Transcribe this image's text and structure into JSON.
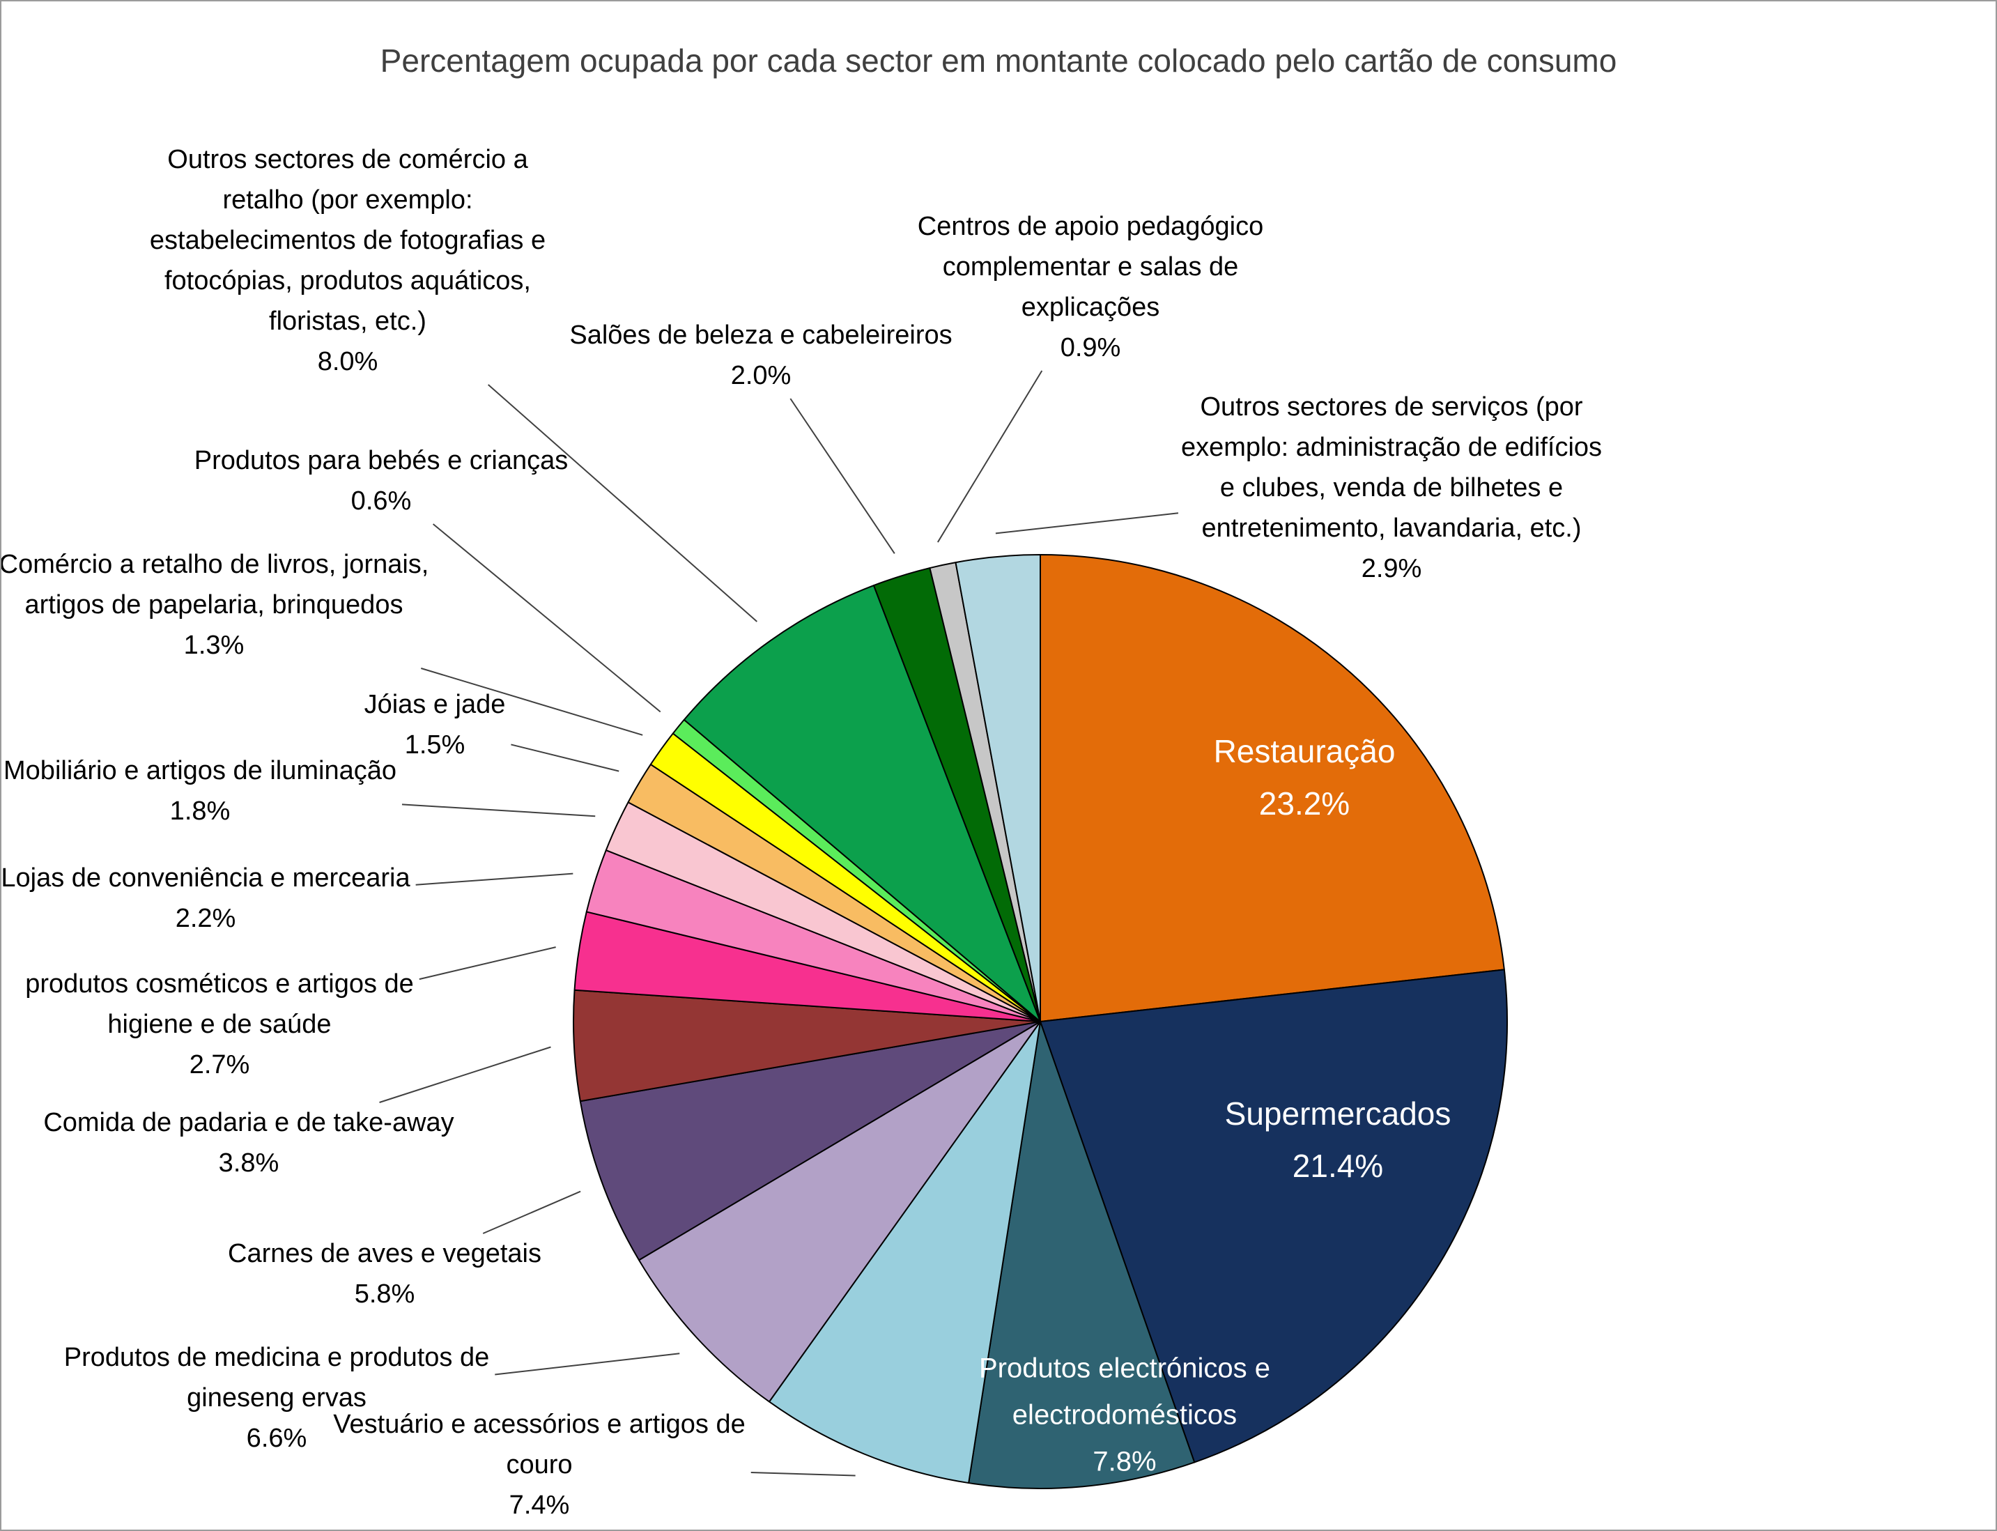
{
  "title": "Percentagem ocupada por cada sector em montante colocado pelo cartão de consumo",
  "chart_data": {
    "type": "pie",
    "title": "Percentagem ocupada por cada sector em montante colocado pelo cartão de consumo",
    "unit": "%",
    "legend_position": "none",
    "direction": "clockwise",
    "start_angle_deg": 0,
    "slices": [
      {
        "id": "restauracao",
        "label": "Restauração",
        "label_lines": [
          "Restauração"
        ],
        "value": 23.2,
        "percent_text": "23.2%",
        "color": "#E36C09",
        "label_placement": "inside"
      },
      {
        "id": "supermercados",
        "label": "Supermercados",
        "label_lines": [
          "Supermercados"
        ],
        "value": 21.4,
        "percent_text": "21.4%",
        "color": "#16315E",
        "label_placement": "inside"
      },
      {
        "id": "electronicos",
        "label": "Produtos electrónicos e electrodomésticos",
        "label_lines": [
          "Produtos electrónicos e",
          "electrodomésticos"
        ],
        "value": 7.8,
        "percent_text": "7.8%",
        "color": "#2F6372",
        "label_placement": "inside"
      },
      {
        "id": "vestuario",
        "label": "Vestuário e acessórios e artigos de couro",
        "label_lines": [
          "Vestuário e acessórios e artigos de",
          "couro"
        ],
        "value": 7.4,
        "percent_text": "7.4%",
        "color": "#99CFDD",
        "label_placement": "outside"
      },
      {
        "id": "medicina",
        "label": "Produtos de medicina e produtos de gineseng ervas",
        "label_lines": [
          "Produtos de medicina e produtos de",
          "gineseng ervas"
        ],
        "value": 6.6,
        "percent_text": "6.6%",
        "color": "#B2A1C7",
        "label_placement": "outside"
      },
      {
        "id": "carnes",
        "label": "Carnes de aves e vegetais",
        "label_lines": [
          "Carnes de aves e vegetais"
        ],
        "value": 5.8,
        "percent_text": "5.8%",
        "color": "#5F4A7B",
        "label_placement": "outside"
      },
      {
        "id": "padaria",
        "label": "Comida de padaria e de take-away",
        "label_lines": [
          "Comida de padaria e de take-away"
        ],
        "value": 3.8,
        "percent_text": "3.8%",
        "color": "#943634",
        "label_placement": "outside"
      },
      {
        "id": "cosmeticos",
        "label": "produtos cosméticos e artigos de higiene e de saúde",
        "label_lines": [
          "produtos cosméticos e artigos de",
          "higiene e de saúde"
        ],
        "value": 2.7,
        "percent_text": "2.7%",
        "color": "#F7308F",
        "label_placement": "outside"
      },
      {
        "id": "lojas",
        "label": "Lojas de conveniência e mercearia",
        "label_lines": [
          "Lojas de conveniência e mercearia"
        ],
        "value": 2.2,
        "percent_text": "2.2%",
        "color": "#F783BE",
        "label_placement": "outside"
      },
      {
        "id": "mobiliario",
        "label": "Mobiliário e artigos de iluminação",
        "label_lines": [
          "Mobiliário e artigos de iluminação"
        ],
        "value": 1.8,
        "percent_text": "1.8%",
        "color": "#F9C6D1",
        "label_placement": "outside"
      },
      {
        "id": "joias",
        "label": "Jóias e jade",
        "label_lines": [
          "Jóias e jade"
        ],
        "value": 1.5,
        "percent_text": "1.5%",
        "color": "#F8BC62",
        "label_placement": "outside"
      },
      {
        "id": "livros",
        "label": "Comércio a retalho de livros, jornais, artigos de papelaria, brinquedos",
        "label_lines": [
          "Comércio a retalho de livros, jornais,",
          "artigos de papelaria, brinquedos"
        ],
        "value": 1.3,
        "percent_text": "1.3%",
        "color": "#FFFF00",
        "label_placement": "outside"
      },
      {
        "id": "bebes",
        "label": "Produtos para bebés e crianças",
        "label_lines": [
          "Produtos para bebés e crianças"
        ],
        "value": 0.6,
        "percent_text": "0.6%",
        "color": "#5BEC5B",
        "label_placement": "outside"
      },
      {
        "id": "outros-comercio",
        "label": "Outros sectores de comércio a retalho (por exemplo: estabelecimentos de fotografias e fotocópias, produtos aquáticos, floristas, etc.)",
        "label_lines": [
          "Outros sectores de comércio a",
          "retalho (por exemplo:",
          "estabelecimentos de fotografias e",
          "fotocópias, produtos aquáticos,",
          "floristas, etc.)"
        ],
        "value": 8.0,
        "percent_text": "8.0%",
        "color": "#0CA04C",
        "label_placement": "outside"
      },
      {
        "id": "saloes",
        "label": "Salões de beleza e cabeleireiros",
        "label_lines": [
          "Salões de beleza e cabeleireiros"
        ],
        "value": 2.0,
        "percent_text": "2.0%",
        "color": "#026B06",
        "label_placement": "outside"
      },
      {
        "id": "centros",
        "label": "Centros de apoio pedagógico complementar e salas de explicações",
        "label_lines": [
          "Centros de apoio pedagógico",
          "complementar e salas de",
          "explicações"
        ],
        "value": 0.9,
        "percent_text": "0.9%",
        "color": "#C7C7C7",
        "label_placement": "outside"
      },
      {
        "id": "outros-servicos",
        "label": "Outros sectores de serviços (por exemplo: administração de edifícios e clubes, venda de bilhetes e entretenimento, lavandaria, etc.)",
        "label_lines": [
          "Outros sectores de serviços (por",
          "exemplo: administração de edifícios",
          "e clubes, venda de bilhetes e",
          "entretenimento, lavandaria, etc.)"
        ],
        "value": 2.9,
        "percent_text": "2.9%",
        "color": "#B2D7E1",
        "label_placement": "outside"
      }
    ]
  }
}
